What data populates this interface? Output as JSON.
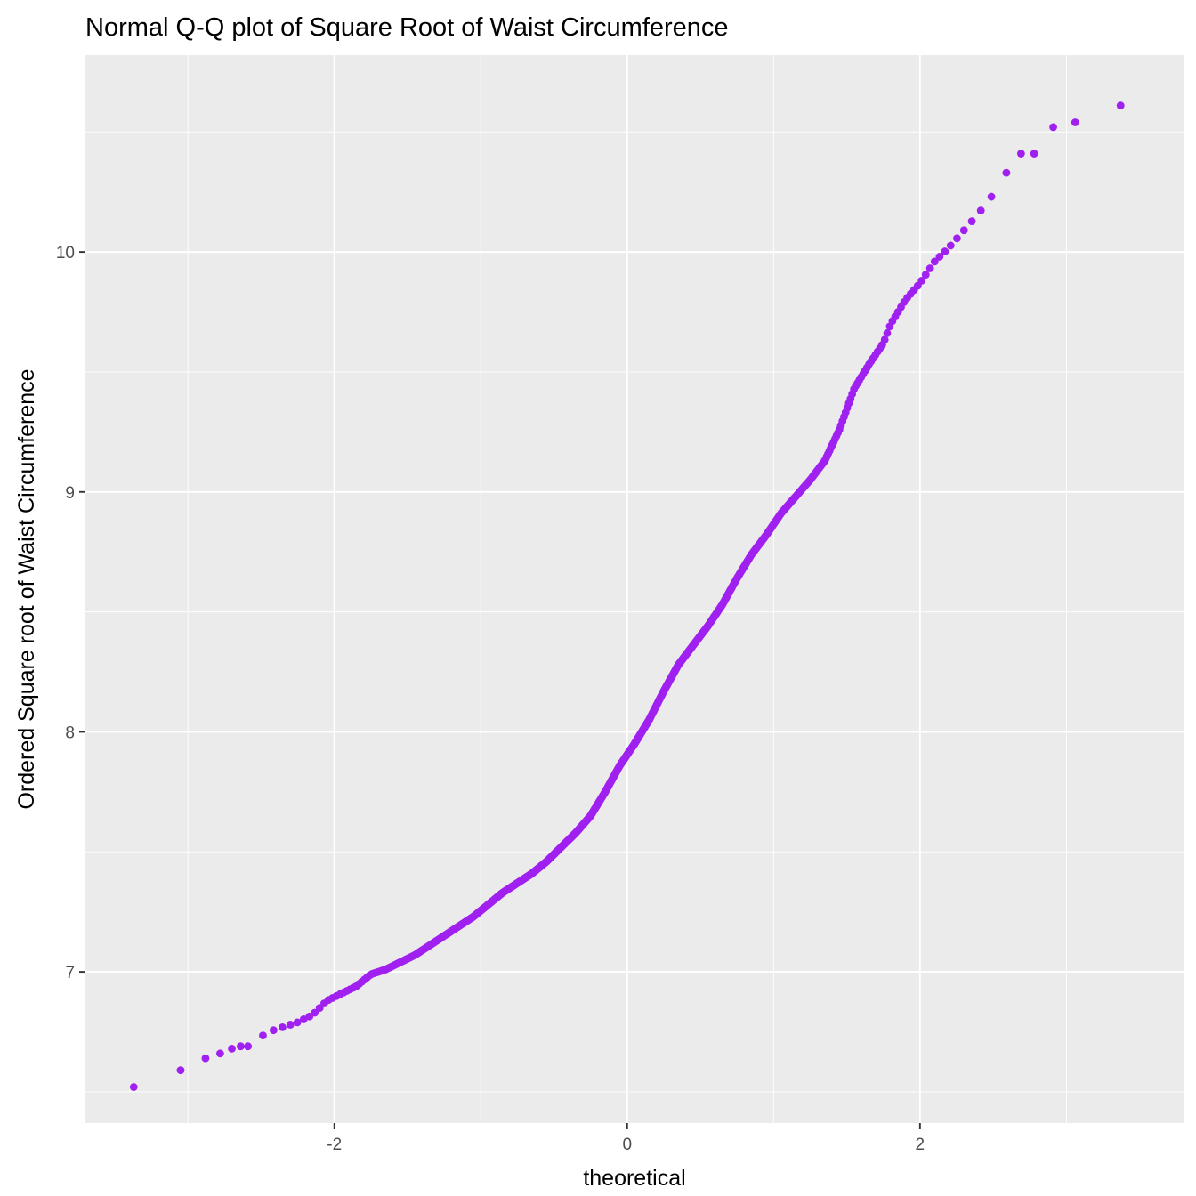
{
  "chart_data": {
    "type": "scatter",
    "title": "Normal Q-Q plot of Square Root of Waist Circumference",
    "xlabel": "theoretical",
    "ylabel": "Ordered Square root of Waist Circumference",
    "xlim": [
      -3.7,
      3.8
    ],
    "ylim": [
      6.37,
      10.82
    ],
    "x_ticks": [
      -2,
      0,
      2
    ],
    "x_tick_labels": [
      "-2",
      "0",
      "2"
    ],
    "y_ticks": [
      7,
      8,
      9,
      10
    ],
    "y_tick_labels": [
      "7",
      "8",
      "9",
      "10"
    ],
    "grid": true,
    "background": "#ebebeb",
    "grid_color": "#ffffff",
    "point_color": "#a020f0",
    "tail_points": [
      {
        "x": -3.37,
        "y": 6.52
      },
      {
        "x": -3.05,
        "y": 6.59
      },
      {
        "x": -2.88,
        "y": 6.64
      },
      {
        "x": -2.78,
        "y": 6.66
      },
      {
        "x": -2.7,
        "y": 6.68
      },
      {
        "x": -2.64,
        "y": 6.69
      },
      {
        "x": -2.59,
        "y": 6.69
      },
      {
        "x": 2.59,
        "y": 10.33
      },
      {
        "x": 2.69,
        "y": 10.41
      },
      {
        "x": 2.78,
        "y": 10.41
      },
      {
        "x": 2.91,
        "y": 10.52
      },
      {
        "x": 3.06,
        "y": 10.54
      },
      {
        "x": 3.37,
        "y": 10.61
      }
    ],
    "curve": [
      [
        -2.55,
        6.71
      ],
      [
        -2.45,
        6.75
      ],
      [
        -2.35,
        6.77
      ],
      [
        -2.25,
        6.79
      ],
      [
        -2.15,
        6.82
      ],
      [
        -2.05,
        6.88
      ],
      [
        -1.95,
        6.91
      ],
      [
        -1.85,
        6.94
      ],
      [
        -1.75,
        6.99
      ],
      [
        -1.65,
        7.01
      ],
      [
        -1.55,
        7.04
      ],
      [
        -1.45,
        7.07
      ],
      [
        -1.35,
        7.11
      ],
      [
        -1.25,
        7.15
      ],
      [
        -1.15,
        7.19
      ],
      [
        -1.05,
        7.23
      ],
      [
        -0.95,
        7.28
      ],
      [
        -0.85,
        7.33
      ],
      [
        -0.75,
        7.37
      ],
      [
        -0.65,
        7.41
      ],
      [
        -0.55,
        7.46
      ],
      [
        -0.45,
        7.52
      ],
      [
        -0.35,
        7.58
      ],
      [
        -0.25,
        7.65
      ],
      [
        -0.15,
        7.75
      ],
      [
        -0.05,
        7.86
      ],
      [
        0.05,
        7.95
      ],
      [
        0.15,
        8.05
      ],
      [
        0.25,
        8.17
      ],
      [
        0.35,
        8.28
      ],
      [
        0.45,
        8.36
      ],
      [
        0.55,
        8.44
      ],
      [
        0.65,
        8.53
      ],
      [
        0.75,
        8.64
      ],
      [
        0.85,
        8.74
      ],
      [
        0.95,
        8.82
      ],
      [
        1.05,
        8.91
      ],
      [
        1.15,
        8.98
      ],
      [
        1.25,
        9.05
      ],
      [
        1.35,
        9.13
      ],
      [
        1.45,
        9.26
      ],
      [
        1.55,
        9.43
      ],
      [
        1.65,
        9.53
      ],
      [
        1.75,
        9.62
      ],
      [
        1.8,
        9.7
      ],
      [
        1.9,
        9.8
      ],
      [
        2.0,
        9.87
      ],
      [
        2.1,
        9.96
      ],
      [
        2.2,
        10.02
      ],
      [
        2.3,
        10.09
      ],
      [
        2.4,
        10.16
      ],
      [
        2.5,
        10.24
      ]
    ],
    "curve_points_count": 700
  }
}
